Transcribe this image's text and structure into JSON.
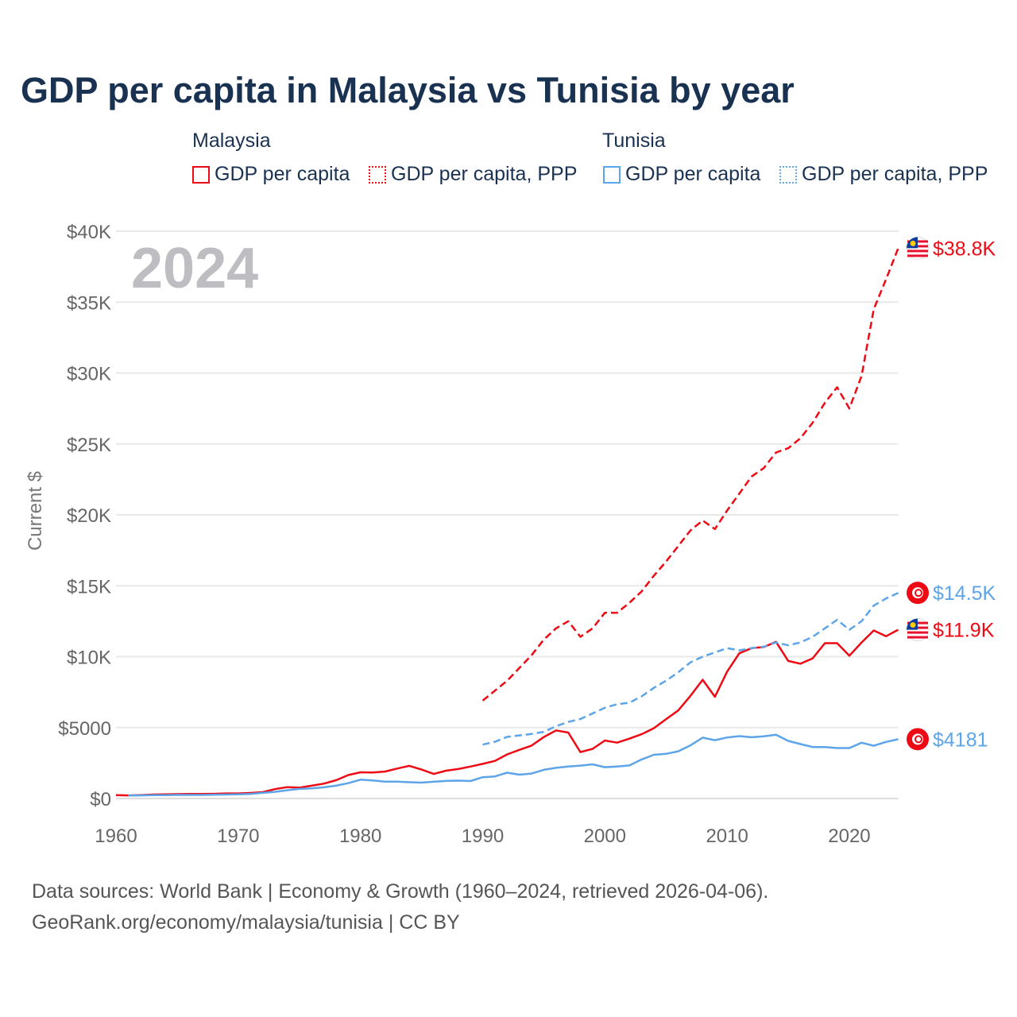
{
  "colors": {
    "malaysia": "#ee0a14",
    "tunisia": "#5ea4e8",
    "title": "#1a3252"
  },
  "legend": {
    "groups": [
      {
        "name": "Malaysia",
        "items": [
          {
            "label": "GDP per capita",
            "style": "solid"
          },
          {
            "label": "GDP per capita, PPP",
            "style": "dotted"
          }
        ]
      },
      {
        "name": "Tunisia",
        "items": [
          {
            "label": "GDP per capita",
            "style": "solid"
          },
          {
            "label": "GDP per capita, PPP",
            "style": "dotted"
          }
        ]
      }
    ]
  },
  "footer": {
    "line1": "Data sources: World Bank | Economy & Growth (1960–2024, retrieved 2026-04-06).",
    "line2": "GeoRank.org/economy/malaysia/tunisia | CC BY"
  },
  "chart_data": {
    "type": "line",
    "title": "GDP per capita in Malaysia vs Tunisia by year",
    "year_watermark": "2024",
    "xlabel": "",
    "ylabel": "Current $",
    "xlim": [
      1960,
      2024
    ],
    "ylim": [
      0,
      40000
    ],
    "x_ticks": [
      1960,
      1970,
      1980,
      1990,
      2000,
      2010,
      2020
    ],
    "x_tick_labels": [
      "1960",
      "1970",
      "1980",
      "1990",
      "2000",
      "2010",
      "2020"
    ],
    "y_ticks": [
      0,
      5000,
      10000,
      15000,
      20000,
      25000,
      30000,
      35000,
      40000
    ],
    "y_tick_labels": [
      "$0",
      "$5000",
      "$10K",
      "$15K",
      "$20K",
      "$25K",
      "$30K",
      "$35K",
      "$40K"
    ],
    "grid": true,
    "series": [
      {
        "name": "Malaysia GDP per capita",
        "country": "malaysia",
        "dash": false,
        "start": 1960,
        "end_label": "$11.9K",
        "values": [
          235,
          220,
          240,
          280,
          290,
          310,
          320,
          320,
          330,
          360,
          360,
          390,
          450,
          660,
          800,
          770,
          900,
          1050,
          1290,
          1650,
          1850,
          1830,
          1900,
          2110,
          2300,
          2040,
          1730,
          1960,
          2080,
          2250,
          2440,
          2650,
          3110,
          3430,
          3730,
          4330,
          4800,
          4650,
          3270,
          3500,
          4090,
          3940,
          4220,
          4530,
          4950,
          5590,
          6210,
          7240,
          8370,
          7170,
          8940,
          10240,
          10600,
          10680,
          11050,
          9700,
          9500,
          9880,
          10950,
          10950,
          10070,
          11000,
          11850,
          11440,
          11900
        ]
      },
      {
        "name": "Malaysia GDP per capita, PPP",
        "country": "malaysia",
        "dash": true,
        "start": 1990,
        "end_label": "$38.8K",
        "values": [
          6900,
          7600,
          8300,
          9200,
          10100,
          11200,
          12000,
          12500,
          11400,
          12000,
          13100,
          13100,
          13800,
          14600,
          15700,
          16700,
          17800,
          18900,
          19600,
          19000,
          20300,
          21500,
          22700,
          23300,
          24400,
          24700,
          25400,
          26500,
          27900,
          29000,
          27500,
          29800,
          34500,
          36600,
          38800
        ]
      },
      {
        "name": "Tunisia GDP per capita",
        "country": "tunisia",
        "dash": false,
        "start": 1961,
        "end_label": "$4181",
        "values": [
          210,
          220,
          240,
          240,
          250,
          250,
          250,
          270,
          280,
          290,
          320,
          400,
          470,
          580,
          680,
          710,
          790,
          900,
          1080,
          1330,
          1270,
          1190,
          1190,
          1150,
          1120,
          1180,
          1240,
          1260,
          1230,
          1500,
          1560,
          1820,
          1680,
          1760,
          2020,
          2160,
          2250,
          2320,
          2410,
          2210,
          2250,
          2330,
          2750,
          3080,
          3150,
          3330,
          3750,
          4290,
          4110,
          4300,
          4400,
          4320,
          4380,
          4500,
          4060,
          3840,
          3630,
          3630,
          3560,
          3560,
          3930,
          3720,
          3990,
          4181
        ]
      },
      {
        "name": "Tunisia GDP per capita, PPP",
        "country": "tunisia",
        "dash": true,
        "start": 1990,
        "end_label": "$14.5K",
        "values": [
          3800,
          4000,
          4350,
          4450,
          4550,
          4700,
          5100,
          5400,
          5600,
          6000,
          6400,
          6650,
          6750,
          7200,
          7800,
          8300,
          8900,
          9600,
          10000,
          10300,
          10600,
          10450,
          10600,
          10700,
          11000,
          10800,
          11000,
          11400,
          12000,
          12600,
          11900,
          12500,
          13600,
          14100,
          14500
        ]
      }
    ]
  }
}
